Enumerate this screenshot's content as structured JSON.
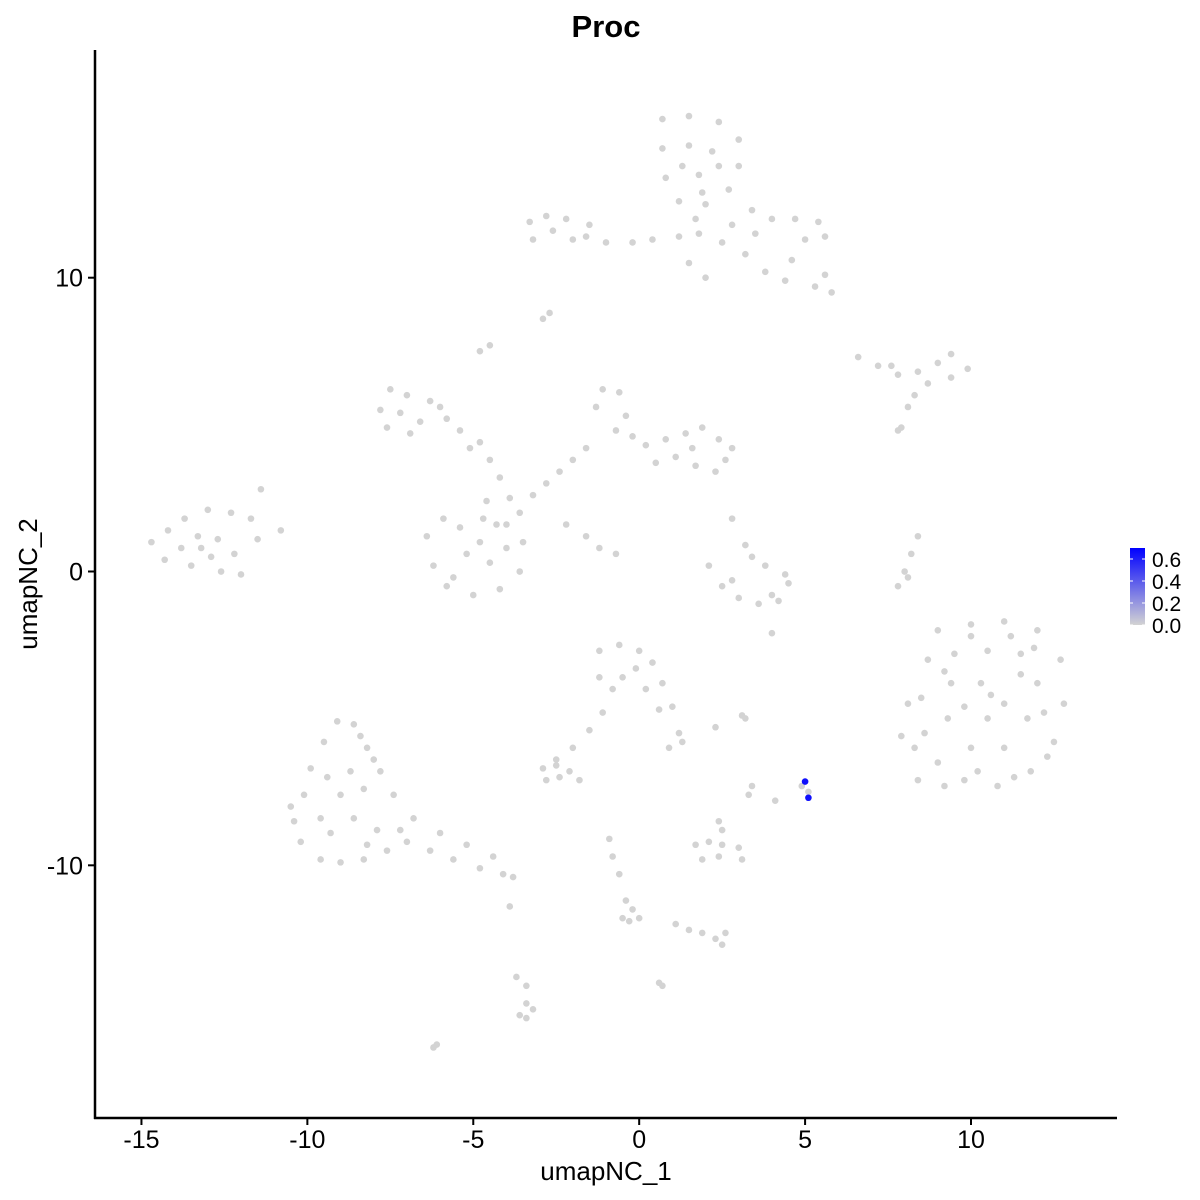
{
  "chart_data": {
    "type": "scatter",
    "title": "Proc",
    "xlabel": "umapNC_1",
    "ylabel": "umapNC_2",
    "xlim": [
      -16.4,
      14.4
    ],
    "ylim": [
      -18.6,
      17.75
    ],
    "x_ticks": [
      -15,
      -10,
      -5,
      0,
      5,
      10
    ],
    "y_ticks": [
      -10,
      0,
      10
    ],
    "grid": false,
    "legend": {
      "position": "right",
      "type": "colorbar",
      "ticks": [
        "0.0",
        "0.2",
        "0.4",
        "0.6"
      ],
      "range": [
        0,
        0.7
      ],
      "low_color": "#d3d3d3",
      "high_color": "#0000ff"
    },
    "point_color_zero": "#d3d3d3",
    "points_zero": [
      [
        9,
        -2
      ],
      [
        10,
        -1.8
      ],
      [
        11,
        -1.7
      ],
      [
        12,
        -2
      ],
      [
        12.7,
        -3
      ],
      [
        12.8,
        -4.5
      ],
      [
        12.5,
        -5.8
      ],
      [
        11.8,
        -6.8
      ],
      [
        10.8,
        -7.3
      ],
      [
        9.8,
        -7.1
      ],
      [
        9,
        -6.5
      ],
      [
        8.6,
        -5.5
      ],
      [
        8.5,
        -4.3
      ],
      [
        8.7,
        -3
      ],
      [
        9.5,
        -2.8
      ],
      [
        10.5,
        -2.7
      ],
      [
        11.5,
        -2.8
      ],
      [
        12,
        -3.8
      ],
      [
        11.7,
        -5
      ],
      [
        11,
        -6
      ],
      [
        10,
        -6
      ],
      [
        9.3,
        -5
      ],
      [
        9.4,
        -3.8
      ],
      [
        10.3,
        -3.8
      ],
      [
        11,
        -4.5
      ],
      [
        10.5,
        -5
      ],
      [
        9.8,
        -4.6
      ],
      [
        11.5,
        -3.5
      ],
      [
        12.2,
        -4.8
      ],
      [
        10.2,
        -6.8
      ],
      [
        8.3,
        -6
      ],
      [
        8.1,
        -4.5
      ],
      [
        7.9,
        -5.6
      ],
      [
        8.4,
        -7.1
      ],
      [
        9.2,
        -7.3
      ],
      [
        11.3,
        -7
      ],
      [
        12.3,
        -6.3
      ],
      [
        10,
        -2.2
      ],
      [
        11.2,
        -2.2
      ],
      [
        9.2,
        -3.4
      ],
      [
        10.6,
        -4.2
      ],
      [
        11.9,
        -2.6
      ],
      [
        0.7,
        15.4
      ],
      [
        1.5,
        15.5
      ],
      [
        2.4,
        15.3
      ],
      [
        3,
        14.7
      ],
      [
        3,
        13.8
      ],
      [
        2.7,
        13
      ],
      [
        2,
        12.5
      ],
      [
        1.2,
        12.6
      ],
      [
        0.8,
        13.4
      ],
      [
        0.7,
        14.4
      ],
      [
        1.5,
        14.5
      ],
      [
        2.2,
        14.3
      ],
      [
        1.8,
        13.5
      ],
      [
        2.4,
        13.8
      ],
      [
        1.3,
        13.8
      ],
      [
        1.9,
        12.9
      ],
      [
        3.4,
        12.3
      ],
      [
        4,
        12
      ],
      [
        4.7,
        12
      ],
      [
        5.4,
        11.9
      ],
      [
        5.6,
        11.4
      ],
      [
        5,
        11.3
      ],
      [
        3.5,
        11.5
      ],
      [
        2.8,
        11.8
      ],
      [
        2.5,
        11.2
      ],
      [
        3.2,
        10.8
      ],
      [
        3.8,
        10.2
      ],
      [
        4.4,
        9.9
      ],
      [
        5.3,
        9.7
      ],
      [
        5.8,
        9.5
      ],
      [
        5.6,
        10.1
      ],
      [
        4.6,
        10.6
      ],
      [
        1.8,
        11.5
      ],
      [
        1.2,
        11.4
      ],
      [
        0.4,
        11.3
      ],
      [
        -0.2,
        11.2
      ],
      [
        1.5,
        10.5
      ],
      [
        2,
        10
      ],
      [
        1.7,
        12
      ],
      [
        -3.3,
        11.9
      ],
      [
        -2.8,
        12.1
      ],
      [
        -2.2,
        12
      ],
      [
        -1.5,
        11.8
      ],
      [
        -1,
        11.2
      ],
      [
        -2,
        11.3
      ],
      [
        -2.6,
        11.6
      ],
      [
        -3.2,
        11.3
      ],
      [
        -1.6,
        11.4
      ],
      [
        -14.7,
        1
      ],
      [
        -14.3,
        0.4
      ],
      [
        -13.5,
        0.2
      ],
      [
        -12.6,
        0
      ],
      [
        -12.2,
        0.6
      ],
      [
        -11.5,
        1.1
      ],
      [
        -11.7,
        1.8
      ],
      [
        -12.3,
        2
      ],
      [
        -13,
        2.1
      ],
      [
        -13.7,
        1.8
      ],
      [
        -14.2,
        1.4
      ],
      [
        -13.3,
        1.2
      ],
      [
        -12.7,
        1.1
      ],
      [
        -13.8,
        0.8
      ],
      [
        -12.9,
        0.5
      ],
      [
        -11.4,
        2.8
      ],
      [
        -10.8,
        1.4
      ],
      [
        -12,
        -0.1
      ],
      [
        -13.2,
        0.8
      ],
      [
        -7.8,
        5.5
      ],
      [
        -7.5,
        6.2
      ],
      [
        -7,
        6
      ],
      [
        -6.3,
        5.8
      ],
      [
        -5.8,
        5.2
      ],
      [
        -5.4,
        4.8
      ],
      [
        -6.6,
        5.1
      ],
      [
        -7.2,
        5.4
      ],
      [
        -7.6,
        4.9
      ],
      [
        -6.9,
        4.7
      ],
      [
        -6,
        5.6
      ],
      [
        -5.1,
        4.2
      ],
      [
        -4.5,
        3.8
      ],
      [
        -4.8,
        4.4
      ],
      [
        -4.2,
        3.2
      ],
      [
        -3.9,
        2.5
      ],
      [
        -3.6,
        2
      ],
      [
        -3.2,
        2.6
      ],
      [
        -2.8,
        3
      ],
      [
        -2.4,
        3.4
      ],
      [
        -2,
        3.8
      ],
      [
        -1.6,
        4.2
      ],
      [
        -4.6,
        2.4
      ],
      [
        -4.3,
        1.6
      ],
      [
        -2.2,
        1.6
      ],
      [
        -1.6,
        1.2
      ],
      [
        -1.2,
        0.8
      ],
      [
        -0.7,
        0.6
      ],
      [
        -4.8,
        7.5
      ],
      [
        -4.5,
        7.7
      ],
      [
        -2.9,
        8.6
      ],
      [
        -2.7,
        8.8
      ],
      [
        -6.4,
        1.2
      ],
      [
        -6.2,
        0.2
      ],
      [
        -5.8,
        -0.5
      ],
      [
        -5,
        -0.8
      ],
      [
        -4.2,
        -0.6
      ],
      [
        -3.6,
        0
      ],
      [
        -3.5,
        1
      ],
      [
        -4,
        1.6
      ],
      [
        -4.7,
        1.8
      ],
      [
        -5.4,
        1.5
      ],
      [
        -5.9,
        1.8
      ],
      [
        -5.2,
        0.6
      ],
      [
        -4.5,
        0.3
      ],
      [
        -5.6,
        -0.2
      ],
      [
        -4,
        0.8
      ],
      [
        -4.8,
        1
      ],
      [
        -1.3,
        5.6
      ],
      [
        -1.1,
        6.2
      ],
      [
        -0.6,
        6.1
      ],
      [
        -0.4,
        5.3
      ],
      [
        -0.2,
        4.6
      ],
      [
        0.2,
        4.3
      ],
      [
        0.8,
        4.5
      ],
      [
        1.4,
        4.7
      ],
      [
        1.9,
        4.9
      ],
      [
        2.4,
        4.5
      ],
      [
        2.6,
        3.8
      ],
      [
        2.3,
        3.4
      ],
      [
        1.7,
        3.6
      ],
      [
        1.1,
        3.9
      ],
      [
        0.5,
        3.7
      ],
      [
        -0.7,
        4.8
      ],
      [
        2.8,
        4.2
      ],
      [
        1.6,
        4.2
      ],
      [
        2.1,
        0.2
      ],
      [
        2.5,
        -0.5
      ],
      [
        3,
        -0.9
      ],
      [
        3.6,
        -1.1
      ],
      [
        4.2,
        -1
      ],
      [
        4.5,
        -0.4
      ],
      [
        4.4,
        -0.1
      ],
      [
        3.2,
        0.9
      ],
      [
        3.4,
        0.5
      ],
      [
        2.8,
        -0.3
      ],
      [
        4,
        -0.8
      ],
      [
        3.8,
        0.2
      ],
      [
        2.8,
        1.8
      ],
      [
        6.6,
        7.3
      ],
      [
        7.2,
        7
      ],
      [
        7.8,
        6.7
      ],
      [
        8.4,
        6.8
      ],
      [
        9,
        7.1
      ],
      [
        9.4,
        7.4
      ],
      [
        9.9,
        6.9
      ],
      [
        9.4,
        6.6
      ],
      [
        8.7,
        6.4
      ],
      [
        8.3,
        6
      ],
      [
        8.1,
        5.6
      ],
      [
        7.9,
        4.9
      ],
      [
        7.6,
        7
      ],
      [
        8.4,
        1.2
      ],
      [
        8.2,
        0.6
      ],
      [
        8,
        0
      ],
      [
        7.8,
        -0.5
      ],
      [
        8.1,
        -0.2
      ],
      [
        -10.4,
        -8.5
      ],
      [
        -10.2,
        -9.2
      ],
      [
        -9.6,
        -9.8
      ],
      [
        -9,
        -9.9
      ],
      [
        -8.3,
        -9.8
      ],
      [
        -7.6,
        -9.5
      ],
      [
        -7,
        -9.2
      ],
      [
        -6.3,
        -9.5
      ],
      [
        -5.6,
        -9.8
      ],
      [
        -4.8,
        -10.1
      ],
      [
        -4.1,
        -10.3
      ],
      [
        -3.8,
        -10.4
      ],
      [
        -4.4,
        -9.7
      ],
      [
        -5.2,
        -9.3
      ],
      [
        -6,
        -8.9
      ],
      [
        -6.8,
        -8.4
      ],
      [
        -7.4,
        -7.6
      ],
      [
        -7.8,
        -6.8
      ],
      [
        -8.2,
        -6
      ],
      [
        -8.6,
        -5.2
      ],
      [
        -9.1,
        -5.1
      ],
      [
        -9.5,
        -5.8
      ],
      [
        -9.9,
        -6.7
      ],
      [
        -10.1,
        -7.6
      ],
      [
        -9.6,
        -8.4
      ],
      [
        -9,
        -7.6
      ],
      [
        -8.7,
        -6.8
      ],
      [
        -8.3,
        -7.4
      ],
      [
        -8.6,
        -8.4
      ],
      [
        -7.9,
        -8.8
      ],
      [
        -7.2,
        -8.8
      ],
      [
        -8,
        -6.4
      ],
      [
        -9.3,
        -8.9
      ],
      [
        -8.2,
        -9.3
      ],
      [
        -10.5,
        -8
      ],
      [
        -9.4,
        -7
      ],
      [
        -8.4,
        -5.6
      ],
      [
        -3.9,
        -11.4
      ],
      [
        -1.2,
        -2.7
      ],
      [
        -0.6,
        -2.5
      ],
      [
        0,
        -2.7
      ],
      [
        0.4,
        -3.1
      ],
      [
        0.7,
        -3.8
      ],
      [
        1,
        -4.6
      ],
      [
        1.2,
        -5.5
      ],
      [
        1.3,
        -5.8
      ],
      [
        0.2,
        -4
      ],
      [
        -0.5,
        -3.6
      ],
      [
        -1.2,
        -3.6
      ],
      [
        -0.8,
        -4
      ],
      [
        -0.1,
        -3.3
      ],
      [
        -1.1,
        -4.8
      ],
      [
        -1.5,
        -5.4
      ],
      [
        -2,
        -6
      ],
      [
        -2.5,
        -6.4
      ],
      [
        0.6,
        -4.7
      ],
      [
        -2.9,
        -6.7
      ],
      [
        -2.5,
        -6.6
      ],
      [
        -2.1,
        -6.8
      ],
      [
        -1.8,
        -7.1
      ],
      [
        -2.4,
        -7
      ],
      [
        -2.8,
        -7.1
      ],
      [
        1.7,
        -9.3
      ],
      [
        2.1,
        -9.2
      ],
      [
        2.5,
        -9.3
      ],
      [
        3,
        -9.4
      ],
      [
        3.1,
        -9.8
      ],
      [
        2.4,
        -9.7
      ],
      [
        1.9,
        -9.8
      ],
      [
        2.4,
        -8.5
      ],
      [
        2.5,
        -8.8
      ],
      [
        3.3,
        -7.6
      ],
      [
        3.4,
        -7.3
      ],
      [
        1.5,
        -12.2
      ],
      [
        1.9,
        -12.3
      ],
      [
        2.3,
        -12.5
      ],
      [
        2.5,
        -12.7
      ],
      [
        2.6,
        -12.3
      ],
      [
        1.1,
        -12
      ],
      [
        -3.7,
        -13.8
      ],
      [
        -3.4,
        -14.1
      ],
      [
        -3.4,
        -14.7
      ],
      [
        -3.2,
        -14.9
      ],
      [
        -3.6,
        -15.1
      ],
      [
        -3.4,
        -15.2
      ],
      [
        -6.1,
        -16.1
      ],
      [
        -6.2,
        -16.2
      ],
      [
        -0.9,
        -9.1
      ],
      [
        -0.8,
        -9.7
      ],
      [
        -0.6,
        -10.3
      ],
      [
        -0.4,
        -11.2
      ],
      [
        -0.2,
        -11.5
      ],
      [
        -0.3,
        -11.9
      ],
      [
        0,
        -11.8
      ],
      [
        -0.5,
        -11.8
      ],
      [
        0.6,
        -14
      ],
      [
        0.7,
        -14.1
      ],
      [
        0.9,
        -6
      ],
      [
        2.3,
        -5.3
      ],
      [
        3.2,
        -5
      ],
      [
        3.1,
        -4.9
      ],
      [
        4,
        -2.1
      ],
      [
        7.8,
        4.8
      ],
      [
        4.1,
        -7.8
      ],
      [
        4.9,
        -7.3
      ],
      [
        5.1,
        -7.5
      ]
    ],
    "points_expressed": [
      {
        "x": 5.0,
        "y": -7.15,
        "value": 0.65
      },
      {
        "x": 5.1,
        "y": -7.7,
        "value": 0.65
      }
    ]
  }
}
